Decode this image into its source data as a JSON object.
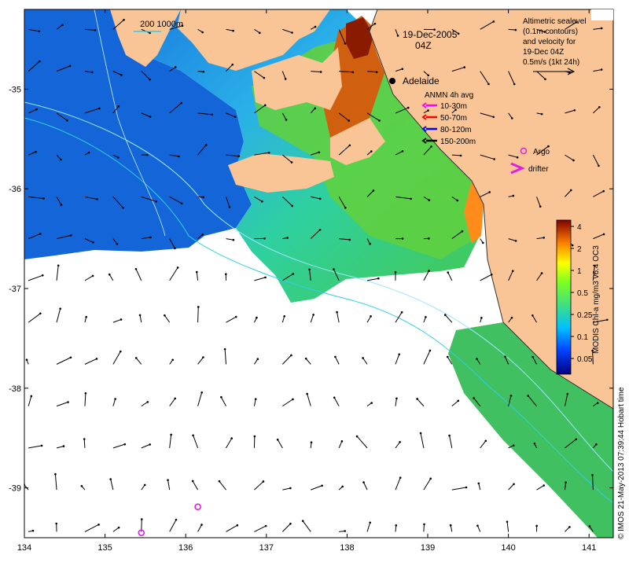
{
  "map": {
    "date": "19-Dec-2005",
    "time": "04Z",
    "place": "Adelaide",
    "x_ticks": [
      "134",
      "135",
      "136",
      "137",
      "138",
      "139",
      "140",
      "141"
    ],
    "y_ticks": [
      "-35",
      "-36",
      "-37",
      "-38",
      "-39"
    ],
    "x_range": [
      134,
      141.3
    ],
    "y_range": [
      -34.2,
      -39.5
    ],
    "bathymetry_label": "200  1000m",
    "altimetry_note": [
      "Altimetric sealevel",
      "(0.1m contours)",
      "and velocity for",
      "19-Dec 04Z",
      "0.5m/s (1kt 24h)"
    ],
    "anmn_title": "ANMN 4h avg",
    "anmn_legend": [
      {
        "label": "10-30m",
        "color": "#ff00ff"
      },
      {
        "label": "50-70m",
        "color": "#ff0000"
      },
      {
        "label": "80-120m",
        "color": "#0000ff"
      },
      {
        "label": "150-200m",
        "color": "#000000"
      }
    ],
    "argo_label": "Argo",
    "drifter_label": "drifter",
    "argo_color": "#e020e0",
    "land_color": "#f9c597",
    "colorbar": {
      "title": "MODIS Chl-a mg/m3 v6.4 OC3",
      "ticks": [
        "4",
        "2",
        "1",
        "0.5",
        "0.25",
        "0.1",
        "0.05"
      ]
    },
    "credit": "© IMOS 21-May-2013 07:39:44 Hobart time",
    "argo_floats": [
      {
        "lon": 136.15,
        "lat": -39.19
      },
      {
        "lon": 135.45,
        "lat": -39.45
      }
    ],
    "velocity_grid": {
      "lon0": 134.05,
      "lon_step": 0.35,
      "lat0": -34.4,
      "lat_step": -0.42
    }
  }
}
